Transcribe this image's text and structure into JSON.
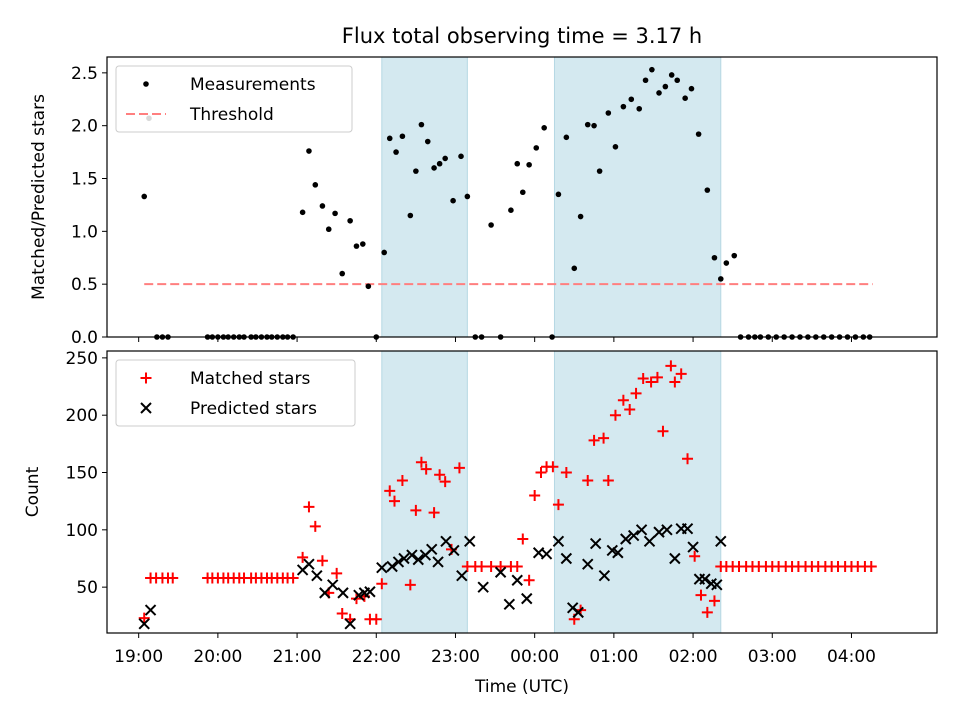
{
  "chart_data": {
    "title": "Flux total observing time = 3.17 h",
    "xlabel": "Time (UTC)",
    "x_tick_labels": [
      "19:00",
      "20:00",
      "21:00",
      "22:00",
      "23:00",
      "00:00",
      "01:00",
      "02:00",
      "03:00",
      "04:00"
    ],
    "x_tick_values": [
      19,
      20,
      21,
      22,
      23,
      24,
      25,
      26,
      27,
      28
    ],
    "xlim": [
      18.6,
      29.08
    ],
    "shaded_intervals": [
      [
        22.07,
        23.15
      ],
      [
        24.25,
        26.35
      ]
    ],
    "shade_color": "#d4e9f0",
    "panels": [
      {
        "type": "scatter",
        "ylabel": "Matched/Predicted stars",
        "ylim": [
          0,
          2.65
        ],
        "y_tick_labels": [
          "0.0",
          "0.5",
          "1.0",
          "1.5",
          "2.0",
          "2.5"
        ],
        "y_tick_values": [
          0,
          0.5,
          1.0,
          1.5,
          2.0,
          2.5
        ],
        "legend": [
          "Measurements",
          "Threshold"
        ],
        "legend_position": "top-left",
        "threshold": {
          "name": "Threshold",
          "value": 0.5,
          "x_range": [
            19.07,
            28.27
          ],
          "color": "#ff7f7f"
        },
        "series": [
          {
            "name": "Measurements",
            "color": "#000000",
            "x": [
              19.07,
              19.13,
              19.23,
              19.3,
              19.37,
              19.87,
              19.93,
              20.0,
              20.07,
              20.13,
              20.2,
              20.27,
              20.33,
              20.42,
              20.48,
              20.55,
              20.62,
              20.68,
              20.75,
              20.82,
              20.88,
              20.95,
              21.07,
              21.15,
              21.23,
              21.32,
              21.4,
              21.48,
              21.57,
              21.67,
              21.75,
              21.83,
              21.9,
              22.0,
              22.1,
              22.17,
              22.25,
              22.33,
              22.43,
              22.5,
              22.57,
              22.65,
              22.73,
              22.8,
              22.87,
              22.97,
              23.07,
              23.15,
              23.25,
              23.33,
              23.45,
              23.57,
              23.7,
              23.78,
              23.85,
              23.93,
              24.02,
              24.12,
              24.22,
              24.3,
              24.4,
              24.5,
              24.58,
              24.67,
              24.75,
              24.82,
              24.93,
              25.02,
              25.12,
              25.22,
              25.32,
              25.4,
              25.48,
              25.57,
              25.65,
              25.73,
              25.8,
              25.9,
              25.98,
              26.07,
              26.18,
              26.27,
              26.35,
              26.42,
              26.52,
              26.6,
              26.7,
              26.78,
              26.85,
              26.95,
              27.05,
              27.15,
              27.25,
              27.35,
              27.45,
              27.55,
              27.65,
              27.75,
              27.85,
              27.95,
              28.05,
              28.15,
              28.23
            ],
            "values": [
              1.33,
              2.07,
              0.0,
              0.0,
              0.0,
              0.0,
              0.0,
              0.0,
              0.0,
              0.0,
              0.0,
              0.0,
              0.0,
              0.0,
              0.0,
              0.0,
              0.0,
              0.0,
              0.0,
              0.0,
              0.0,
              0.0,
              1.18,
              1.76,
              1.44,
              1.24,
              1.02,
              1.17,
              0.6,
              1.1,
              0.86,
              0.88,
              0.48,
              0.0,
              0.8,
              1.88,
              1.75,
              1.9,
              1.15,
              1.57,
              2.01,
              1.85,
              1.6,
              1.64,
              1.69,
              1.29,
              1.71,
              1.33,
              0.0,
              0.0,
              1.06,
              0.0,
              1.2,
              1.64,
              1.37,
              1.63,
              1.79,
              1.98,
              0.0,
              1.35,
              1.89,
              0.65,
              1.14,
              2.01,
              2.0,
              1.57,
              2.12,
              1.8,
              2.18,
              2.25,
              2.16,
              2.43,
              2.53,
              2.31,
              2.37,
              2.48,
              2.43,
              2.26,
              2.35,
              1.92,
              1.39,
              0.75,
              0.55,
              0.7,
              0.77,
              0.0,
              0.0,
              0.0,
              0.0,
              0.0,
              0.0,
              0.0,
              0.0,
              0.0,
              0.0,
              0.0,
              0.0,
              0.0,
              0.0,
              0.0,
              0.0,
              0.0,
              0.0
            ]
          }
        ]
      },
      {
        "type": "scatter",
        "ylabel": "Count",
        "ylim": [
          10,
          256
        ],
        "y_tick_labels": [
          "50",
          "100",
          "150",
          "200",
          "250"
        ],
        "y_tick_values": [
          50,
          100,
          150,
          200,
          250
        ],
        "legend": [
          "Matched stars",
          "Predicted stars"
        ],
        "legend_position": "top-left",
        "series": [
          {
            "name": "Matched stars",
            "color": "#ff0000",
            "marker": "+",
            "x": [
              19.07,
              19.15,
              19.22,
              19.3,
              19.37,
              19.43,
              19.87,
              19.93,
              20.0,
              20.07,
              20.13,
              20.2,
              20.27,
              20.33,
              20.42,
              20.48,
              20.55,
              20.62,
              20.68,
              20.75,
              20.82,
              20.88,
              20.95,
              21.07,
              21.15,
              21.23,
              21.32,
              21.4,
              21.5,
              21.57,
              21.67,
              21.75,
              21.85,
              21.92,
              22.0,
              22.07,
              22.17,
              22.23,
              22.33,
              22.43,
              22.5,
              22.57,
              22.63,
              22.73,
              22.8,
              22.87,
              22.95,
              23.05,
              23.15,
              23.25,
              23.33,
              23.45,
              23.57,
              23.7,
              23.78,
              23.85,
              23.93,
              24.0,
              24.08,
              24.15,
              24.23,
              24.3,
              24.4,
              24.5,
              24.58,
              24.67,
              24.75,
              24.87,
              24.93,
              25.02,
              25.12,
              25.2,
              25.28,
              25.37,
              25.47,
              25.55,
              25.62,
              25.72,
              25.77,
              25.85,
              25.93,
              26.02,
              26.1,
              26.18,
              26.27,
              26.35,
              26.42,
              26.5,
              26.58,
              26.67,
              26.75,
              26.83,
              26.92,
              27.0,
              27.08,
              27.17,
              27.25,
              27.33,
              27.42,
              27.5,
              27.58,
              27.67,
              27.75,
              27.83,
              27.92,
              28.0,
              28.08,
              28.17,
              28.25
            ],
            "values": [
              23,
              58,
              58,
              58,
              58,
              58,
              58,
              58,
              58,
              58,
              58,
              58,
              58,
              58,
              58,
              58,
              58,
              58,
              58,
              58,
              58,
              58,
              58,
              76,
              120,
              103,
              73,
              45,
              62,
              27,
              22,
              40,
              42,
              22,
              22,
              53,
              134,
              125,
              143,
              52,
              117,
              159,
              153,
              115,
              148,
              142,
              83,
              154,
              68,
              68,
              68,
              68,
              68,
              68,
              68,
              92,
              56,
              130,
              150,
              155,
              155,
              122,
              150,
              22,
              30,
              143,
              178,
              180,
              143,
              200,
              213,
              205,
              219,
              232,
              229,
              233,
              186,
              243,
              229,
              236,
              162,
              77,
              43,
              28,
              38,
              68,
              68,
              68,
              68,
              68,
              68,
              68,
              68,
              68,
              68,
              68,
              68,
              68,
              68,
              68,
              68,
              68,
              68,
              68,
              68,
              68,
              68,
              68,
              68
            ]
          },
          {
            "name": "Predicted stars",
            "color": "#000000",
            "marker": "x",
            "x": [
              19.07,
              19.15,
              21.07,
              21.15,
              21.25,
              21.35,
              21.45,
              21.58,
              21.67,
              21.78,
              21.85,
              21.92,
              22.07,
              22.2,
              22.28,
              22.35,
              22.45,
              22.53,
              22.62,
              22.7,
              22.78,
              22.88,
              22.98,
              23.08,
              23.18,
              23.35,
              23.57,
              23.68,
              23.78,
              23.9,
              24.05,
              24.15,
              24.3,
              24.4,
              24.48,
              24.55,
              24.67,
              24.77,
              24.88,
              24.98,
              25.05,
              25.15,
              25.25,
              25.35,
              25.45,
              25.57,
              25.67,
              25.77,
              25.85,
              25.93,
              26.0,
              26.08,
              26.15,
              26.23,
              26.3,
              26.35
            ],
            "values": [
              18,
              30,
              65,
              70,
              60,
              45,
              52,
              45,
              18,
              43,
              45,
              46,
              67,
              68,
              72,
              75,
              78,
              74,
              78,
              83,
              72,
              90,
              82,
              60,
              90,
              50,
              63,
              35,
              56,
              40,
              80,
              79,
              90,
              75,
              32,
              28,
              70,
              88,
              60,
              82,
              80,
              92,
              95,
              100,
              90,
              98,
              100,
              75,
              101,
              101,
              85,
              57,
              57,
              53,
              52,
              90
            ]
          }
        ]
      }
    ]
  }
}
